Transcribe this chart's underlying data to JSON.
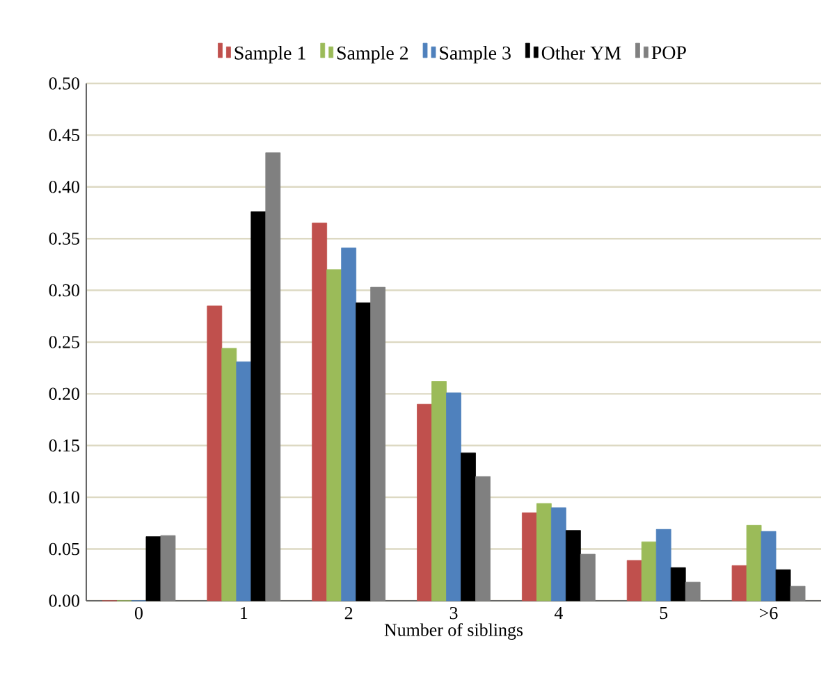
{
  "chart_data": {
    "type": "bar",
    "xlabel": "Number of siblings",
    "categories": [
      "0",
      "1",
      "2",
      "3",
      "4",
      "5",
      ">6"
    ],
    "series": [
      {
        "name": "Sample 1",
        "color": "#c0504d",
        "values": [
          0,
          0.285,
          0.365,
          0.19,
          0.085,
          0.039,
          0.034
        ]
      },
      {
        "name": "Sample 2",
        "color": "#9bbb59",
        "values": [
          0,
          0.244,
          0.32,
          0.212,
          0.094,
          0.057,
          0.073
        ]
      },
      {
        "name": "Sample 3",
        "color": "#4f81bd",
        "values": [
          0,
          0.231,
          0.341,
          0.201,
          0.09,
          0.069,
          0.067
        ]
      },
      {
        "name": "Other YM",
        "color": "#000000",
        "values": [
          0.062,
          0.376,
          0.288,
          0.143,
          0.068,
          0.032,
          0.03
        ]
      },
      {
        "name": "POP",
        "color": "#808080",
        "values": [
          0.063,
          0.433,
          0.303,
          0.12,
          0.045,
          0.018,
          0.014
        ]
      }
    ],
    "ylim": [
      0,
      0.5
    ],
    "yticks": [
      {
        "value": 0,
        "label": "0.00"
      },
      {
        "value": 0.05,
        "label": "0.05"
      },
      {
        "value": 0.1,
        "label": "0.10"
      },
      {
        "value": 0.15,
        "label": "0.15"
      },
      {
        "value": 0.2,
        "label": "0.20"
      },
      {
        "value": 0.25,
        "label": "0.25"
      },
      {
        "value": 0.3,
        "label": "0.30"
      },
      {
        "value": 0.35,
        "label": "0.35"
      },
      {
        "value": 0.4,
        "label": "0.40"
      },
      {
        "value": 0.45,
        "label": "0.45"
      },
      {
        "value": 0.5,
        "label": "0.50"
      }
    ],
    "grid": "y",
    "legend": "top"
  }
}
